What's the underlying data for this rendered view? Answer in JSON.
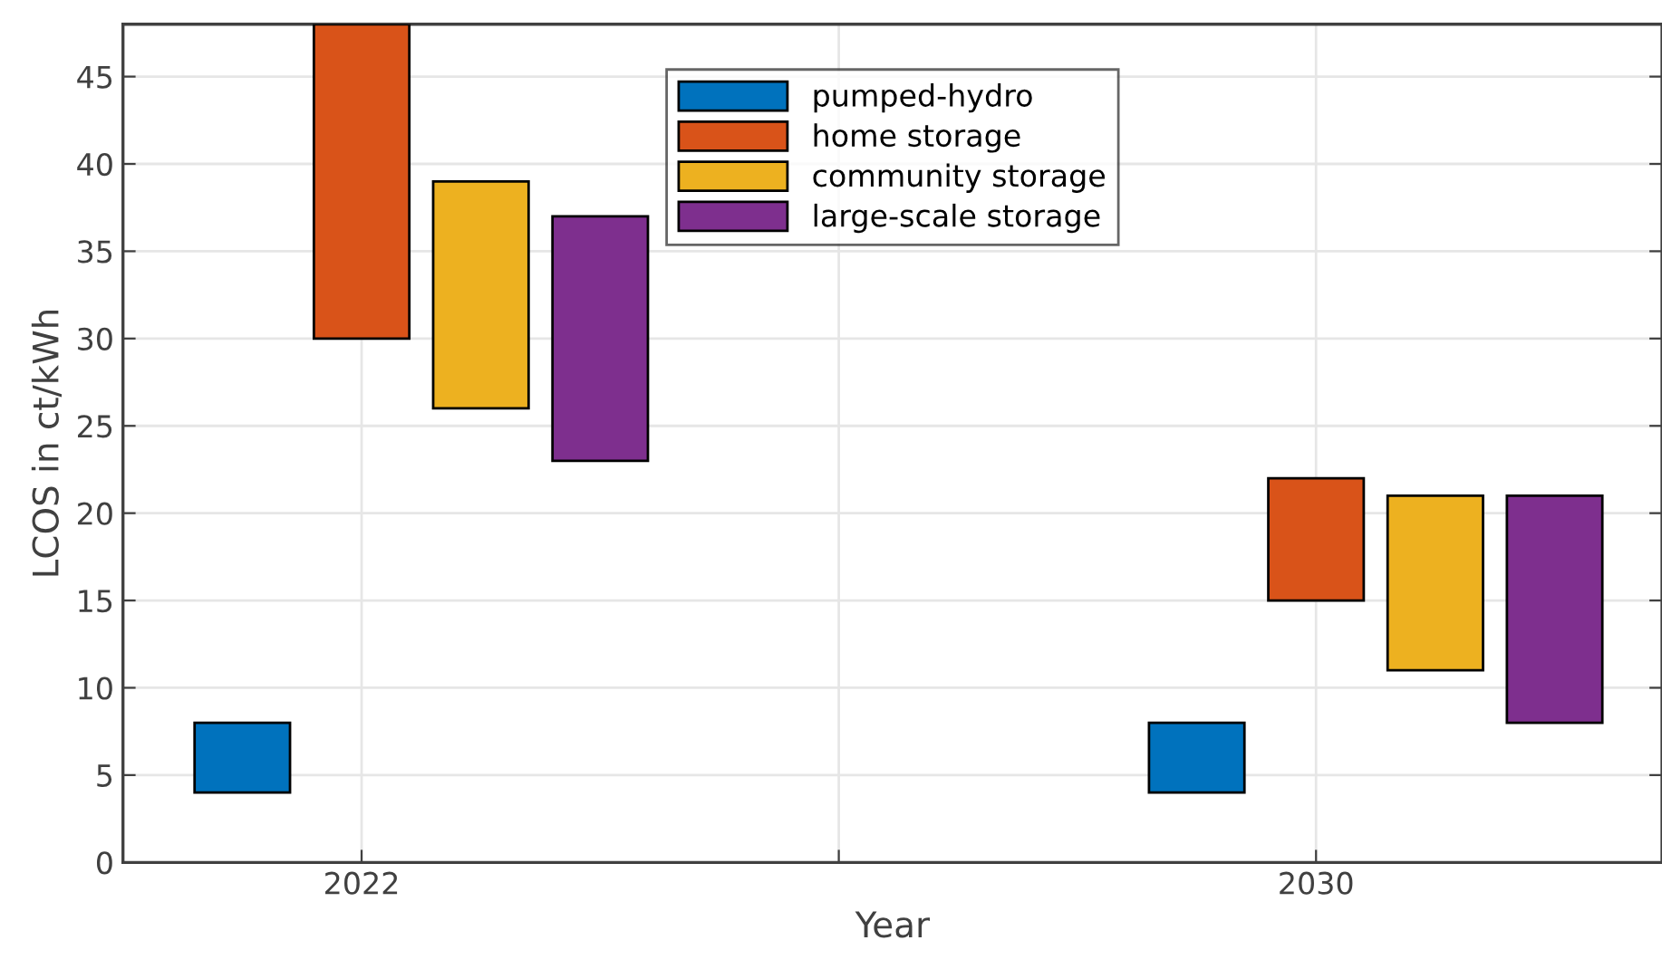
{
  "chart_data": {
    "type": "bar",
    "xlabel": "Year",
    "ylabel": "LCOS in ct/kWh",
    "series": [
      {
        "name": "pumped-hydro",
        "color": "#0072bd",
        "x": [
          2021,
          2029
        ],
        "base": [
          4,
          4
        ],
        "values": [
          4,
          4
        ]
      },
      {
        "name": "home storage",
        "color": "#d95319",
        "x": [
          2022,
          2030
        ],
        "base": [
          30,
          15
        ],
        "values": [
          18,
          7
        ]
      },
      {
        "name": "community storage",
        "color": "#edb120",
        "x": [
          2023,
          2031
        ],
        "base": [
          26,
          11
        ],
        "values": [
          13,
          10
        ]
      },
      {
        "name": "large-scale storage",
        "color": "#7e2f8e",
        "x": [
          2024,
          2032
        ],
        "base": [
          23,
          8
        ],
        "values": [
          14,
          13
        ]
      }
    ],
    "xlim": [
      2020,
      2032.9
    ],
    "xticks": [
      2022,
      {
        "value": 2026,
        "label": null
      },
      2030
    ],
    "ylim": [
      0,
      48
    ],
    "yticks": [
      0,
      5,
      10,
      15,
      20,
      25,
      30,
      35,
      40,
      45
    ],
    "grid": true,
    "legend": "top"
  }
}
